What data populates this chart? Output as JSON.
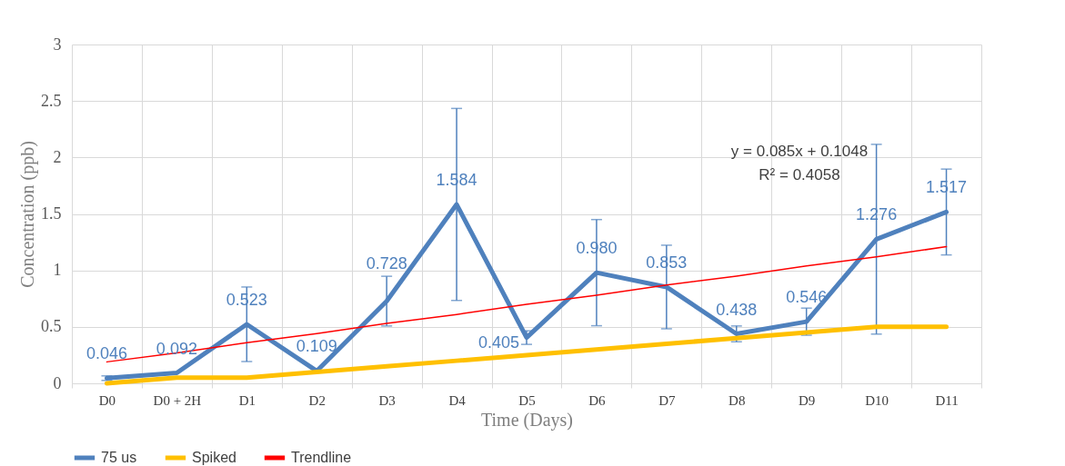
{
  "chart_data": {
    "type": "line",
    "xlabel": "Time (Days)",
    "ylabel": "Concentration (ppb)",
    "categories": [
      "D0",
      "D0 + 2H",
      "D1",
      "D2",
      "D3",
      "D4",
      "D5",
      "D6",
      "D7",
      "D8",
      "D9",
      "D10",
      "D11"
    ],
    "series": [
      {
        "name": "75 us",
        "color": "#4f81bd",
        "values": [
          0.046,
          0.092,
          0.523,
          0.109,
          0.728,
          1.584,
          0.405,
          0.98,
          0.853,
          0.438,
          0.546,
          1.276,
          1.517
        ],
        "errors": [
          0.02,
          null,
          0.33,
          null,
          0.22,
          0.85,
          0.06,
          0.47,
          0.37,
          0.07,
          0.12,
          0.84,
          0.38
        ],
        "value_labels": [
          "0.046",
          "0.092",
          "0.523",
          "0.109",
          "0.728",
          "1.584",
          "0.405",
          "0.980",
          "0.853",
          "0.438",
          "0.546",
          "1.276",
          "1.517"
        ]
      },
      {
        "name": "Spiked",
        "color": "#ffc000",
        "values": [
          0,
          0.05,
          0.05,
          0.1,
          0.15,
          0.2,
          0.25,
          0.3,
          0.35,
          0.4,
          0.45,
          0.5,
          0.5
        ]
      },
      {
        "name": "Trendline",
        "type": "line",
        "color": "#ff0000",
        "values": [
          0.19,
          0.27,
          0.36,
          0.44,
          0.53,
          0.61,
          0.7,
          0.78,
          0.87,
          0.95,
          1.04,
          1.12,
          1.21
        ]
      }
    ],
    "ylim": [
      0,
      3
    ],
    "yticks": [
      0,
      0.5,
      1,
      1.5,
      2,
      2.5,
      3
    ],
    "annotations": [
      "y = 0.085x + 0.1048",
      "R² = 0.4058"
    ],
    "grid": true,
    "legend": "bottom",
    "marker": "none",
    "line_style": "solid"
  }
}
